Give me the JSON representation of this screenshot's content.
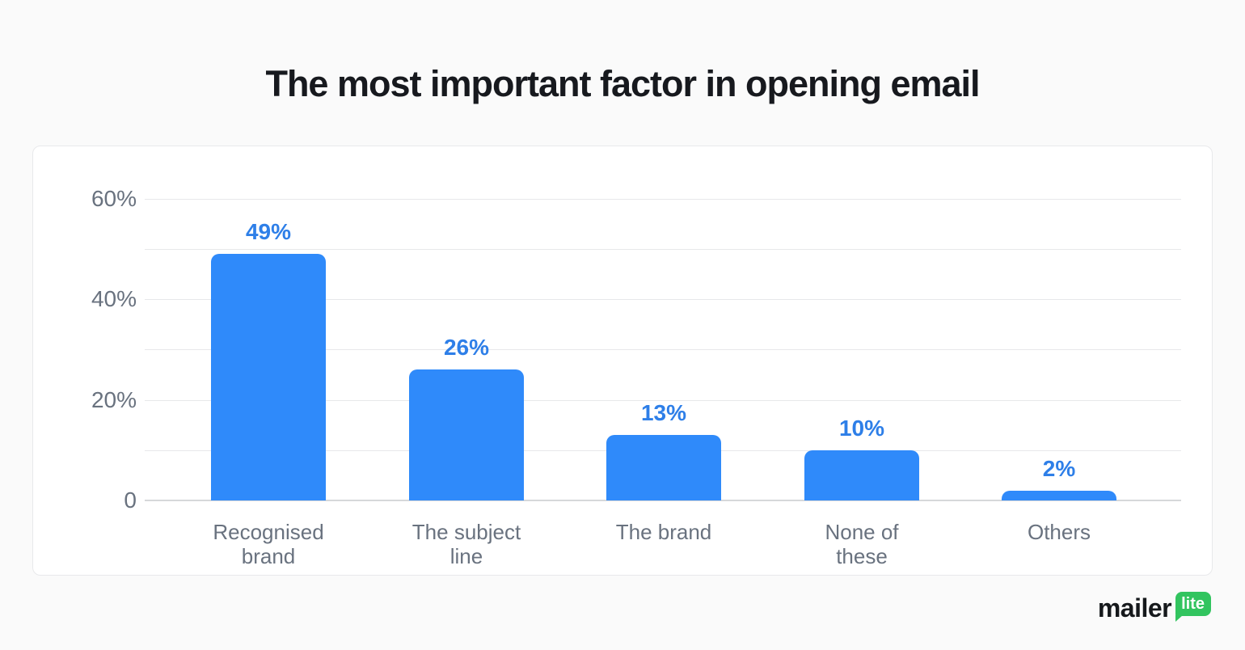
{
  "title": "The most important factor in opening email",
  "chart_data": {
    "type": "bar",
    "title": "The most important factor in opening email",
    "categories": [
      "Recognised brand",
      "The subject line",
      "The brand",
      "None of these",
      "Others"
    ],
    "category_label_lines": [
      [
        "Recognised",
        "brand"
      ],
      [
        "The subject",
        "line"
      ],
      [
        "The brand"
      ],
      [
        "None of",
        "these"
      ],
      [
        "Others"
      ]
    ],
    "values": [
      49,
      26,
      13,
      10,
      2
    ],
    "value_labels": [
      "49%",
      "26%",
      "13%",
      "10%",
      "2%"
    ],
    "xlabel": "",
    "ylabel": "",
    "ylim": [
      0,
      60
    ],
    "gridline_step": 10,
    "ytick_labels": [
      {
        "value": 0,
        "label": "0"
      },
      {
        "value": 20,
        "label": "20%"
      },
      {
        "value": 40,
        "label": "40%"
      },
      {
        "value": 60,
        "label": "60%"
      }
    ],
    "grid": "horizontal",
    "legend": false,
    "colors": {
      "bar": "#2f8afa",
      "value_label": "#2e7fe8",
      "axis_text": "#69727f",
      "gridline": "#e7e8ea",
      "baseline": "#d6d8da"
    }
  },
  "logo": {
    "brand": "mailer",
    "badge": "lite",
    "badge_color": "#32c45f",
    "brand_color": "#16191c"
  }
}
